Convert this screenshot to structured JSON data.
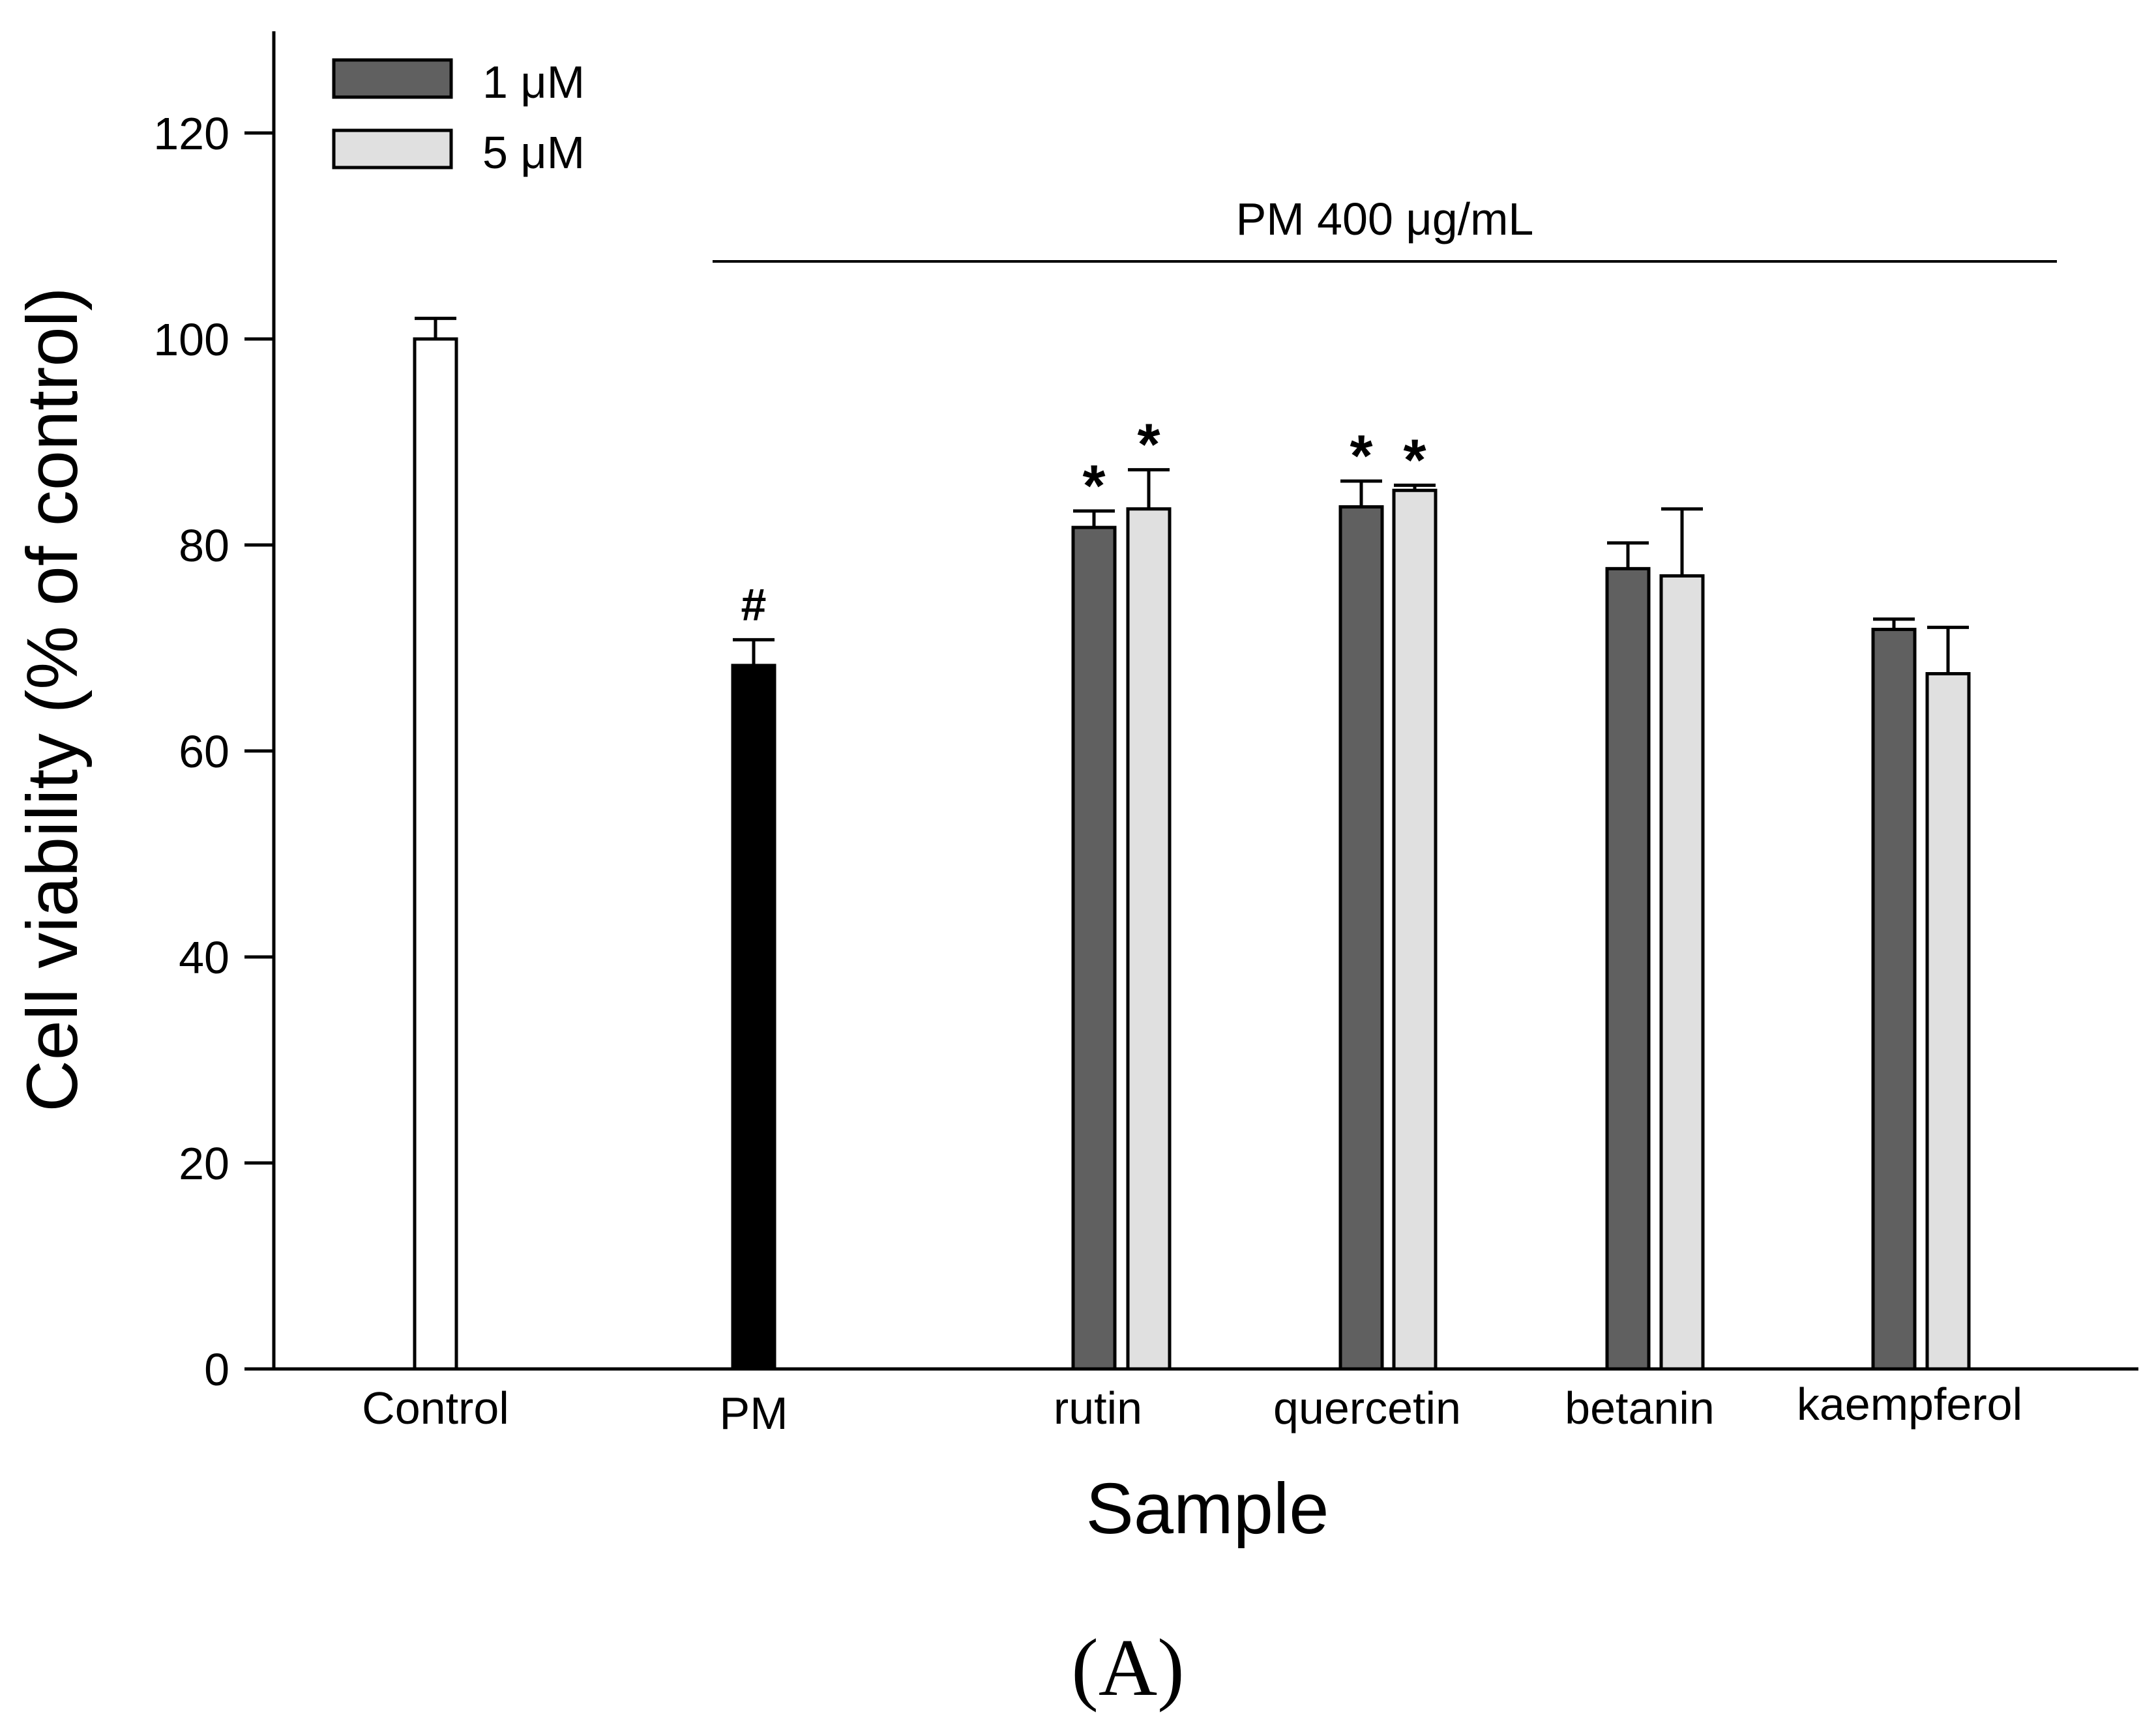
{
  "chart_data": {
    "type": "bar",
    "panel_label": "(A)",
    "xlabel": "Sample",
    "ylabel": "Cell viability (% of control)",
    "ylim": [
      0,
      130
    ],
    "yticks": [
      0,
      20,
      40,
      60,
      80,
      100,
      120
    ],
    "bracket_label": "PM 400 μg/mL",
    "legend": {
      "position": "top-left",
      "entries": [
        {
          "label": "1 μM",
          "color": "#606060"
        },
        {
          "label": "5 μM",
          "color": "#e0e0e0"
        }
      ]
    },
    "categories": [
      "Control",
      "PM",
      "rutin",
      "quercetin",
      "betanin",
      "kaempferol"
    ],
    "bars": [
      {
        "category": "Control",
        "series": "",
        "value": 100,
        "error": 2,
        "color": "#ffffff",
        "mark": ""
      },
      {
        "category": "PM",
        "series": "",
        "value": 68.3,
        "error": 2.5,
        "color": "#000000",
        "mark": "#"
      },
      {
        "category": "rutin",
        "series": "1 μM",
        "value": 81.7,
        "error": 1.6,
        "color": "#606060",
        "mark": "*"
      },
      {
        "category": "rutin",
        "series": "5 μM",
        "value": 83.5,
        "error": 3.8,
        "color": "#e0e0e0",
        "mark": "*"
      },
      {
        "category": "quercetin",
        "series": "1 μM",
        "value": 83.7,
        "error": 2.5,
        "color": "#606060",
        "mark": "*"
      },
      {
        "category": "quercetin",
        "series": "5 μM",
        "value": 85.3,
        "error": 0.5,
        "color": "#e0e0e0",
        "mark": "*"
      },
      {
        "category": "betanin",
        "series": "1 μM",
        "value": 77.7,
        "error": 2.5,
        "color": "#606060",
        "mark": ""
      },
      {
        "category": "betanin",
        "series": "5 μM",
        "value": 77,
        "error": 6.5,
        "color": "#e0e0e0",
        "mark": ""
      },
      {
        "category": "kaempferol",
        "series": "1 μM",
        "value": 71.8,
        "error": 1.0,
        "color": "#606060",
        "mark": ""
      },
      {
        "category": "kaempferol",
        "series": "5 μM",
        "value": 67.5,
        "error": 4.5,
        "color": "#e0e0e0",
        "mark": ""
      }
    ]
  }
}
